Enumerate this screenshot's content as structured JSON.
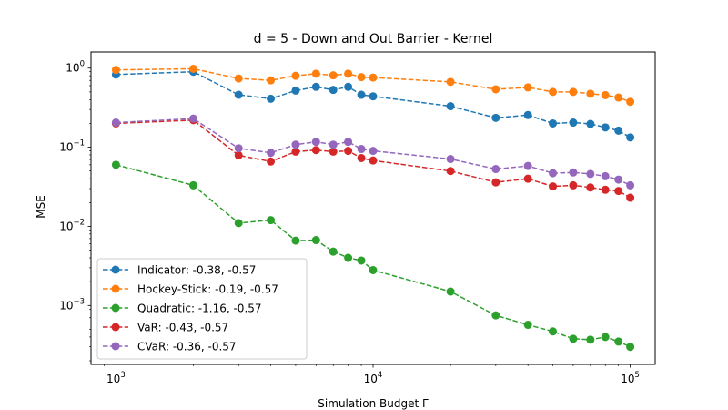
{
  "chart_data": {
    "type": "line",
    "title": "d = 5 - Down and Out Barrier - Kernel",
    "xlabel": "Simulation Budget Γ",
    "ylabel": "MSE",
    "xscale": "log",
    "yscale": "log",
    "xlim": [
      800,
      125000
    ],
    "ylim": [
      0.00018,
      1.6
    ],
    "x_ticks": [
      {
        "value": 1000,
        "base": "10",
        "exp": "3"
      },
      {
        "value": 10000,
        "base": "10",
        "exp": "4"
      },
      {
        "value": 100000,
        "base": "10",
        "exp": "5"
      }
    ],
    "y_ticks": [
      {
        "value": 0.001,
        "base": "10",
        "exp": "−3"
      },
      {
        "value": 0.01,
        "base": "10",
        "exp": "−2"
      },
      {
        "value": 0.1,
        "base": "10",
        "exp": "−1"
      },
      {
        "value": 1,
        "base": "10",
        "exp": "0"
      }
    ],
    "grid": false,
    "legend_position": "lower-left",
    "x": [
      1000,
      2000,
      3000,
      4000,
      5000,
      6000,
      7000,
      8000,
      9000,
      10000,
      20000,
      30000,
      40000,
      50000,
      60000,
      70000,
      80000,
      90000,
      100000
    ],
    "series": [
      {
        "name": "Indicator: -0.38, -0.57",
        "color": "#1f77b4",
        "values": [
          0.83,
          0.9,
          0.46,
          0.41,
          0.52,
          0.58,
          0.53,
          0.58,
          0.46,
          0.44,
          0.33,
          0.235,
          0.255,
          0.2,
          0.205,
          0.197,
          0.178,
          0.162,
          0.133
        ]
      },
      {
        "name": "Hockey-Stick: -0.19, -0.57",
        "color": "#ff7f0e",
        "values": [
          0.95,
          0.98,
          0.74,
          0.7,
          0.8,
          0.85,
          0.81,
          0.85,
          0.77,
          0.76,
          0.67,
          0.54,
          0.57,
          0.5,
          0.5,
          0.475,
          0.455,
          0.425,
          0.375
        ]
      },
      {
        "name": "Quadratic: -1.16, -0.57",
        "color": "#2ca02c",
        "values": [
          0.06,
          0.033,
          0.011,
          0.012,
          0.0066,
          0.0067,
          0.0048,
          0.004,
          0.0037,
          0.0028,
          0.0015,
          0.00075,
          0.00057,
          0.00047,
          0.00038,
          0.00037,
          0.0004,
          0.00035,
          0.0003
        ]
      },
      {
        "name": "VaR: -0.43, -0.57",
        "color": "#d62728",
        "values": [
          0.2,
          0.22,
          0.079,
          0.066,
          0.088,
          0.092,
          0.088,
          0.09,
          0.073,
          0.068,
          0.05,
          0.036,
          0.04,
          0.032,
          0.033,
          0.031,
          0.029,
          0.028,
          0.023
        ]
      },
      {
        "name": "CVaR: -0.36, -0.57",
        "color": "#9467bd",
        "values": [
          0.205,
          0.23,
          0.097,
          0.085,
          0.108,
          0.117,
          0.108,
          0.117,
          0.095,
          0.09,
          0.071,
          0.053,
          0.058,
          0.047,
          0.048,
          0.046,
          0.043,
          0.039,
          0.033
        ]
      }
    ]
  }
}
